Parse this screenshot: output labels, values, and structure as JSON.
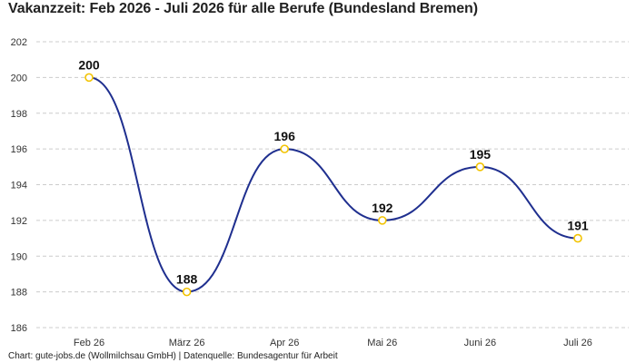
{
  "title": "Vakanzzeit: Feb 2026 - Juli 2026 für alle Berufe (Bundesland Bremen)",
  "footer": "Chart: gute-jobs.de (Wollmilchsau GmbH) | Datenquelle: Bundesagentur für Arbeit",
  "chart_data": {
    "type": "line",
    "title": "Vakanzzeit: Feb 2026 - Juli 2026 für alle Berufe (Bundesland Bremen)",
    "xlabel": "",
    "ylabel": "",
    "categories": [
      "Feb 26",
      "März 26",
      "Apr 26",
      "Mai 26",
      "Juni 26",
      "Juli 26"
    ],
    "series": [
      {
        "values": [
          200,
          188,
          196,
          192,
          195,
          191
        ]
      }
    ],
    "ylim": [
      186,
      202
    ],
    "yticks": [
      186,
      188,
      190,
      192,
      194,
      196,
      198,
      200,
      202
    ],
    "grid": true,
    "smooth": true,
    "line_color": "#1f2f8f",
    "marker_edge_color": "#f2c300",
    "marker_fill_color": "#ffffff",
    "grid_color": "#cccccc"
  }
}
